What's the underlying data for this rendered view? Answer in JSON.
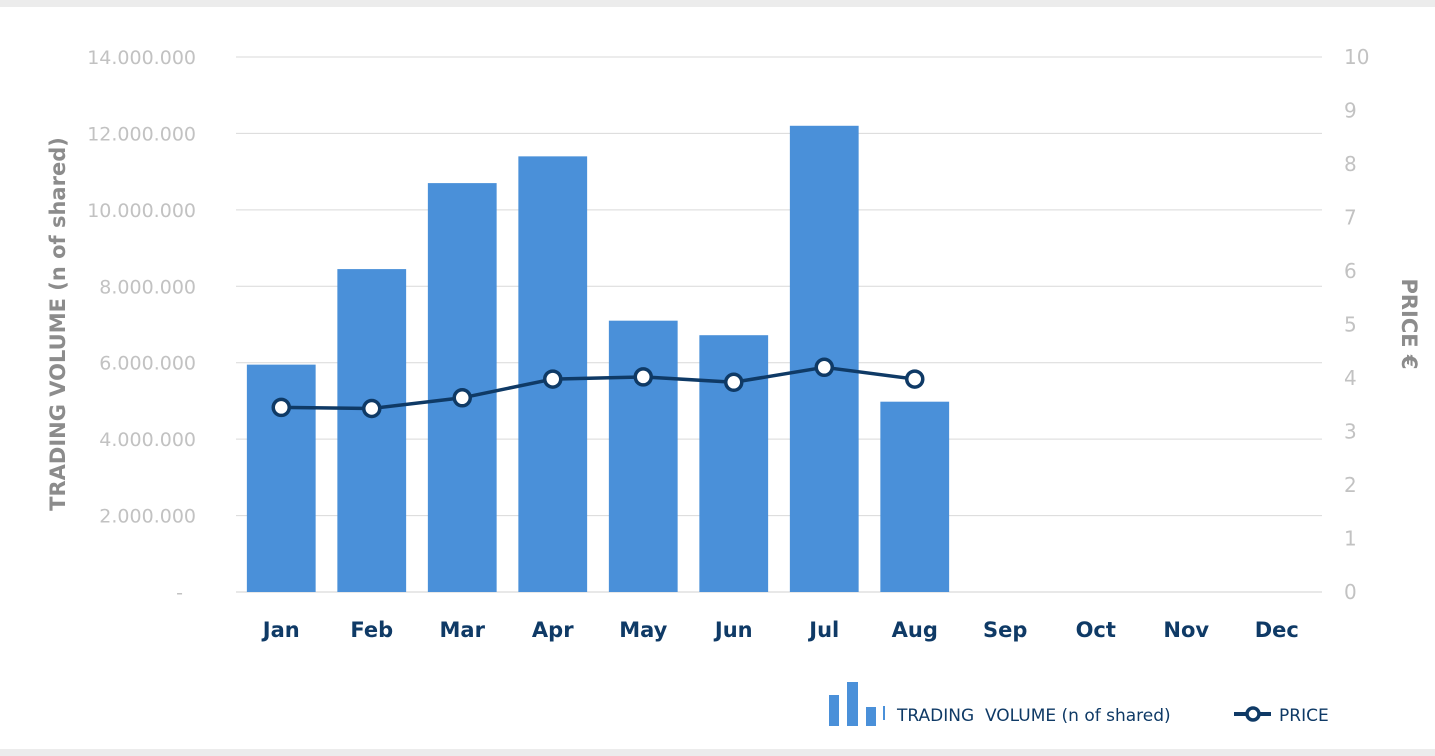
{
  "chart_data": {
    "type": "bar",
    "categories": [
      "Jan",
      "Feb",
      "Mar",
      "Apr",
      "May",
      "Jun",
      "Jul",
      "Aug",
      "Sep",
      "Oct",
      "Nov",
      "Dec"
    ],
    "series": [
      {
        "name": "TRADING  VOLUME (n of shared)",
        "type": "bar",
        "axis": "left",
        "color": "#4a90d9",
        "values": [
          5950000,
          8450000,
          10700000,
          11400000,
          7100000,
          6720000,
          12200000,
          4980000,
          null,
          null,
          null,
          null
        ]
      },
      {
        "name": "PRICE",
        "type": "line",
        "axis": "right",
        "color": "#0f3a66",
        "values": [
          3.45,
          3.43,
          3.63,
          3.98,
          4.02,
          3.92,
          4.2,
          3.98,
          null,
          null,
          null,
          null
        ]
      }
    ],
    "ylabel": "TRADING  VOLUME (n of shared)",
    "y2label": "PRICE €",
    "ylim": [
      0,
      14000000
    ],
    "y2lim": [
      0,
      10
    ],
    "y_ticks": [
      "-",
      "2.000.000",
      "4.000.000",
      "6.000.000",
      "8.000.000",
      "10.000.000",
      "12.000.000",
      "14.000.000"
    ],
    "y2_ticks": [
      "0",
      "1",
      "2",
      "3",
      "4",
      "5",
      "6",
      "7",
      "8",
      "9",
      "10"
    ],
    "grid": true,
    "legend_position": "bottom-right"
  }
}
